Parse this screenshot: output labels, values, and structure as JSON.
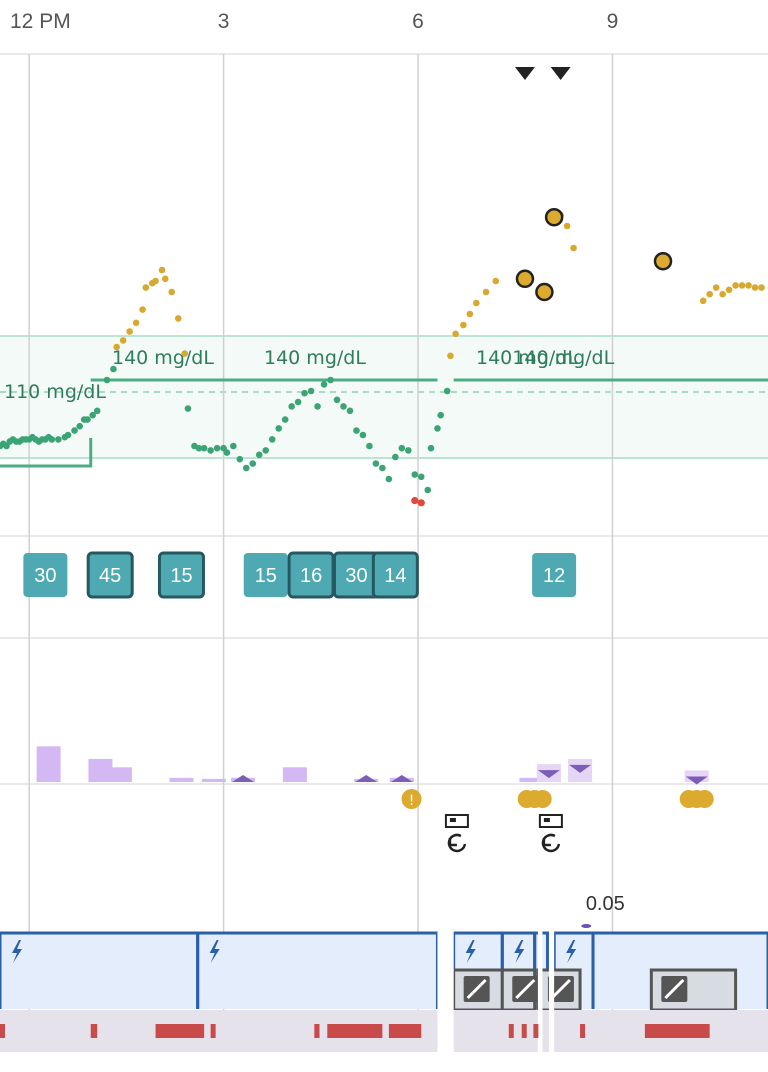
{
  "chart_data": {
    "type": "scatter",
    "x_ticks": [
      {
        "label": "12 PM",
        "hour": 12
      },
      {
        "label": "3",
        "hour": 15
      },
      {
        "label": "6",
        "hour": 18
      },
      {
        "label": "9",
        "hour": 21
      }
    ],
    "x_range": [
      11.55,
      23.4
    ],
    "target_range": {
      "segments": [
        {
          "label": "110 mg/dL",
          "start": 11.0,
          "end": 12.95,
          "value": 110
        },
        {
          "label": "140 mg/dL",
          "start": 12.95,
          "end": 18.3,
          "value": 140
        },
        {
          "label": "140 mg/dL",
          "start": 18.55,
          "end": 23.5,
          "value": 140
        },
        {
          "label": "140 mg/dL",
          "start": 19.3,
          "end": 19.3,
          "value": 140
        }
      ]
    },
    "cgm_readings": [
      [
        11.55,
        110
      ],
      [
        11.6,
        111
      ],
      [
        11.65,
        110
      ],
      [
        11.7,
        112
      ],
      [
        11.75,
        113
      ],
      [
        11.8,
        112
      ],
      [
        11.85,
        112
      ],
      [
        11.9,
        113
      ],
      [
        11.95,
        113
      ],
      [
        12.0,
        113
      ],
      [
        12.05,
        114
      ],
      [
        12.1,
        113
      ],
      [
        12.15,
        112
      ],
      [
        12.2,
        113
      ],
      [
        12.25,
        113
      ],
      [
        12.3,
        114
      ],
      [
        12.35,
        113
      ],
      [
        12.45,
        113
      ],
      [
        12.55,
        114
      ],
      [
        12.6,
        115
      ],
      [
        12.7,
        117
      ],
      [
        12.78,
        119
      ],
      [
        12.85,
        122
      ],
      [
        12.9,
        122
      ],
      [
        12.98,
        124
      ],
      [
        13.05,
        126
      ],
      [
        13.2,
        140
      ],
      [
        13.3,
        145
      ],
      [
        13.35,
        155
      ],
      [
        13.45,
        158
      ],
      [
        13.55,
        162
      ],
      [
        13.65,
        166
      ],
      [
        13.75,
        172
      ],
      [
        13.8,
        182
      ],
      [
        13.9,
        184
      ],
      [
        13.95,
        185
      ],
      [
        14.05,
        190
      ],
      [
        14.1,
        186
      ],
      [
        14.2,
        180
      ],
      [
        14.3,
        168
      ],
      [
        14.4,
        152
      ],
      [
        14.45,
        127
      ],
      [
        14.55,
        110
      ],
      [
        14.62,
        109
      ],
      [
        14.7,
        109
      ],
      [
        14.8,
        108
      ],
      [
        14.9,
        109
      ],
      [
        15.0,
        109
      ],
      [
        15.05,
        107
      ],
      [
        15.15,
        110
      ],
      [
        15.25,
        104
      ],
      [
        15.35,
        100
      ],
      [
        15.45,
        102
      ],
      [
        15.55,
        106
      ],
      [
        15.65,
        108
      ],
      [
        15.75,
        113
      ],
      [
        15.85,
        118
      ],
      [
        15.95,
        122
      ],
      [
        16.05,
        128
      ],
      [
        16.15,
        130
      ],
      [
        16.25,
        134
      ],
      [
        16.35,
        135
      ],
      [
        16.45,
        128
      ],
      [
        16.55,
        138
      ],
      [
        16.65,
        140
      ],
      [
        16.75,
        131
      ],
      [
        16.85,
        128
      ],
      [
        16.95,
        126
      ],
      [
        17.05,
        117
      ],
      [
        17.15,
        115
      ],
      [
        17.25,
        110
      ],
      [
        17.35,
        102
      ],
      [
        17.45,
        100
      ],
      [
        17.55,
        95
      ],
      [
        17.65,
        105
      ],
      [
        17.75,
        109
      ],
      [
        17.85,
        108
      ],
      [
        17.95,
        97
      ],
      [
        18.05,
        96
      ],
      [
        18.15,
        90
      ],
      [
        18.2,
        109
      ],
      [
        18.3,
        118
      ],
      [
        18.35,
        124
      ],
      [
        18.45,
        135
      ],
      [
        18.5,
        151
      ],
      [
        18.58,
        161
      ],
      [
        18.7,
        165
      ],
      [
        18.8,
        170
      ],
      [
        18.9,
        175
      ],
      [
        19.05,
        180
      ],
      [
        19.2,
        185
      ],
      [
        20.2,
        215
      ],
      [
        20.3,
        210
      ],
      [
        20.4,
        200
      ],
      [
        22.4,
        176
      ],
      [
        22.5,
        179
      ],
      [
        22.6,
        182
      ],
      [
        22.7,
        179
      ],
      [
        22.8,
        181
      ],
      [
        22.9,
        183
      ],
      [
        23.0,
        183
      ],
      [
        23.1,
        183
      ],
      [
        23.2,
        182
      ],
      [
        23.3,
        182
      ]
    ],
    "low_readings": [
      [
        17.95,
        87
      ],
      [
        18.05,
        86
      ]
    ],
    "fingersticks": [
      {
        "hour": 19.65,
        "value": 186
      },
      {
        "hour": 19.95,
        "value": 180
      },
      {
        "hour": 20.1,
        "value": 214
      },
      {
        "hour": 21.78,
        "value": 194
      }
    ],
    "carb_entries": [
      {
        "hour": 12.25,
        "value": "30",
        "style": "light"
      },
      {
        "hour": 13.25,
        "value": "45",
        "style": "dark"
      },
      {
        "hour": 14.35,
        "value": "15",
        "style": "dark"
      },
      {
        "hour": 15.65,
        "value": "15",
        "style": "light"
      },
      {
        "hour": 16.35,
        "value": "16",
        "style": "dark"
      },
      {
        "hour": 17.05,
        "value": "30",
        "style": "dark"
      },
      {
        "hour": 17.65,
        "value": "14",
        "style": "dark"
      },
      {
        "hour": 20.1,
        "value": "12",
        "style": "light"
      }
    ],
    "bolus_bars": [
      {
        "hour": 12.3,
        "dose": 3.4,
        "kind": "bolus"
      },
      {
        "hour": 13.1,
        "dose": 2.2,
        "kind": "bolus"
      },
      {
        "hour": 13.4,
        "dose": 1.4,
        "kind": "bolus"
      },
      {
        "hour": 14.35,
        "dose": 0.4,
        "kind": "bolus"
      },
      {
        "hour": 14.85,
        "dose": 0.3,
        "kind": "bolus"
      },
      {
        "hour": 15.3,
        "dose": 0.4,
        "kind": "extended"
      },
      {
        "hour": 16.1,
        "dose": 1.4,
        "kind": "bolus"
      },
      {
        "hour": 17.2,
        "dose": 0.3,
        "kind": "extended"
      },
      {
        "hour": 17.75,
        "dose": 0.4,
        "kind": "extended"
      },
      {
        "hour": 19.75,
        "dose": 0.4,
        "kind": "bolus"
      },
      {
        "hour": 20.02,
        "dose": 1.7,
        "kind": "override"
      },
      {
        "hour": 20.5,
        "dose": 2.2,
        "kind": "override"
      },
      {
        "hour": 22.3,
        "dose": 1.1,
        "kind": "override"
      }
    ],
    "events": [
      {
        "hour": 17.9,
        "kind": "alert"
      },
      {
        "hour": 19.8,
        "kind": "cluster"
      },
      {
        "hour": 22.3,
        "kind": "cluster"
      }
    ],
    "site_changes": [
      {
        "hour": 18.6
      },
      {
        "hour": 20.05
      }
    ],
    "basal_label": "0.05",
    "basal_label_hour": 20.55,
    "basal_segments": [
      {
        "start": 11.0,
        "end": 14.6,
        "bolt": true
      },
      {
        "start": 14.6,
        "end": 18.3,
        "bolt": true
      },
      {
        "start": 18.55,
        "end": 19.3,
        "bolt": true
      },
      {
        "start": 19.3,
        "end": 19.8,
        "bolt": true
      },
      {
        "start": 19.8,
        "end": 20.0,
        "bolt": false
      },
      {
        "start": 20.0,
        "end": 20.1,
        "bolt": false
      },
      {
        "start": 20.1,
        "end": 20.7,
        "bolt": true
      },
      {
        "start": 20.7,
        "end": 23.5,
        "bolt": false
      }
    ],
    "suspend_blocks": [
      {
        "start": 18.55,
        "end": 19.3
      },
      {
        "start": 19.3,
        "end": 19.8
      },
      {
        "start": 19.85,
        "end": 20.5
      },
      {
        "start": 21.6,
        "end": 22.9
      }
    ],
    "gaps": [
      {
        "start": 18.3,
        "end": 18.55
      },
      {
        "start": 19.85,
        "end": 19.92
      },
      {
        "start": 20.02,
        "end": 20.1
      }
    ],
    "bottom_marks": [
      [
        11.55,
        11.6
      ],
      [
        12.95,
        13.05
      ],
      [
        13.95,
        14.7
      ],
      [
        14.8,
        14.82
      ],
      [
        16.4,
        16.48
      ],
      [
        16.6,
        17.45
      ],
      [
        17.55,
        18.05
      ],
      [
        19.4,
        19.45
      ],
      [
        19.6,
        19.65
      ],
      [
        19.78,
        19.83
      ],
      [
        20.5,
        20.55
      ],
      [
        21.5,
        22.5
      ]
    ]
  }
}
